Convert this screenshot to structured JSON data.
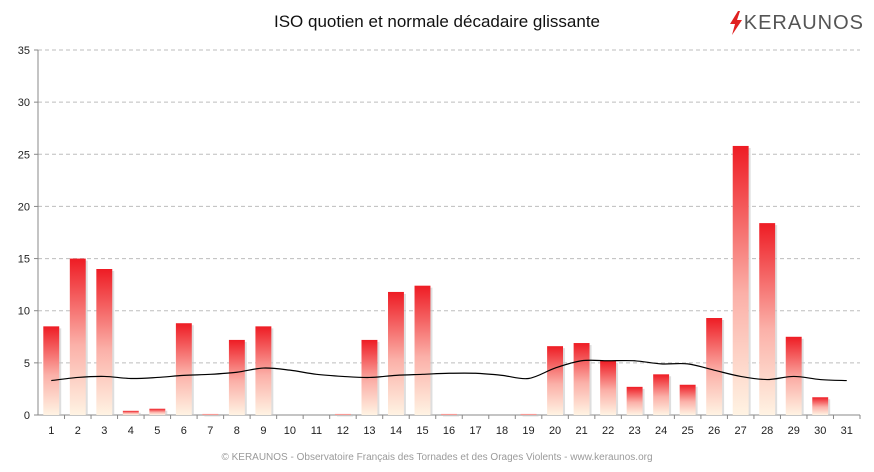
{
  "title": "ISO quotien et normale décadaire glissante",
  "logo_text": "KERAUNOS",
  "footer": "© KERAUNOS - Observatoire Français des Tornades et des Orages Violents - www.keraunos.org",
  "colors": {
    "bar_top": "#ee1c24",
    "bar_bottom": "#fff2e0",
    "line": "#000000",
    "grid": "#bdbdbd",
    "axis": "#888888",
    "logo_red": "#e02020"
  },
  "chart_data": {
    "type": "bar",
    "categories": [
      "1",
      "2",
      "3",
      "4",
      "5",
      "6",
      "7",
      "8",
      "9",
      "10",
      "11",
      "12",
      "13",
      "14",
      "15",
      "16",
      "17",
      "18",
      "19",
      "20",
      "21",
      "22",
      "23",
      "24",
      "25",
      "26",
      "27",
      "28",
      "29",
      "30",
      "31"
    ],
    "series": [
      {
        "type": "bar",
        "values": [
          8.5,
          15,
          14,
          0.4,
          0.6,
          8.8,
          0.1,
          7.2,
          8.5,
          0,
          0,
          0.1,
          7.2,
          11.8,
          12.4,
          0.1,
          0,
          0,
          0.1,
          6.6,
          6.9,
          5.2,
          2.7,
          3.9,
          2.9,
          9.3,
          25.8,
          18.4,
          7.5,
          1.7,
          0
        ]
      },
      {
        "type": "line",
        "values": [
          3.3,
          3.6,
          3.7,
          3.5,
          3.6,
          3.8,
          3.9,
          4.1,
          4.5,
          4.3,
          3.9,
          3.7,
          3.6,
          3.8,
          3.9,
          4.0,
          4.0,
          3.8,
          3.5,
          4.5,
          5.2,
          5.2,
          5.2,
          4.9,
          4.9,
          4.3,
          3.7,
          3.4,
          3.7,
          3.4,
          3.3
        ]
      }
    ],
    "ylim": [
      0,
      35
    ],
    "yticks": [
      0,
      5,
      10,
      15,
      20,
      25,
      30,
      35
    ],
    "grid": true,
    "legend": "none"
  }
}
